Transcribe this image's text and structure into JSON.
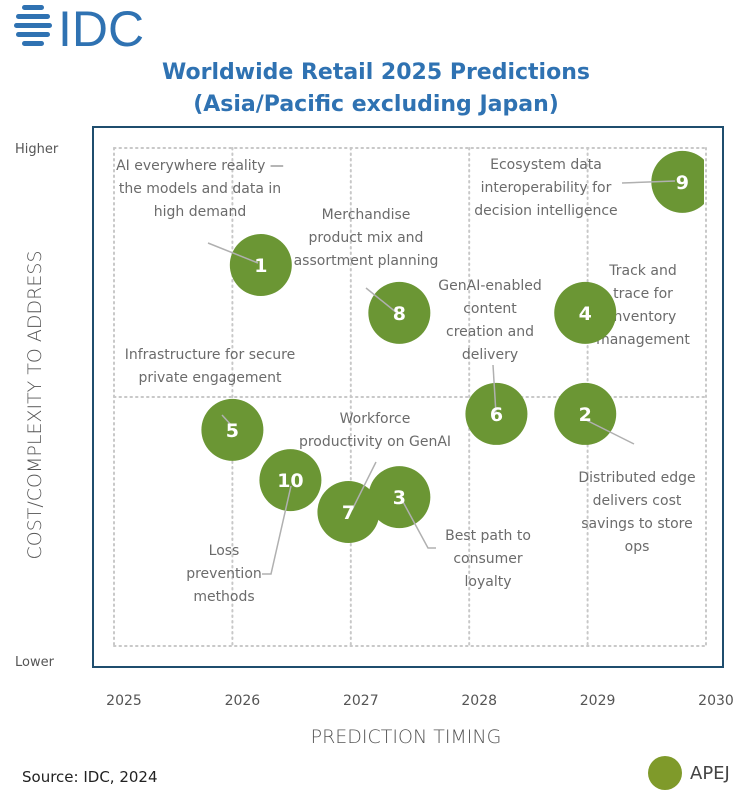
{
  "logo": {
    "text": "IDC",
    "icon": "globe-stripes-icon",
    "color": "#2f72b2"
  },
  "header": {
    "title_line1": "Worldwide Retail 2025 Predictions",
    "title_line2": "(Asia/Pacific excluding Japan)",
    "title_color": "#2f72b2"
  },
  "footer": {
    "source": "Source: IDC, 2024"
  },
  "colors": {
    "bubble": "#6b9634",
    "legend": "#7f9a2a",
    "frame": "#1f4e6e",
    "grid": "#c8c8c8",
    "leader": "#b0b0b0"
  },
  "chart_data": {
    "type": "scatter",
    "title": "Worldwide Retail 2025 Predictions (Asia/Pacific excluding Japan)",
    "xlabel": "PREDICTION TIMING",
    "ylabel": "COST/COMPLEXITY TO ADDRESS",
    "x_ticks": [
      "2025",
      "2026",
      "2027",
      "2028",
      "2029",
      "2030"
    ],
    "xlim": [
      2025,
      2030
    ],
    "y_ticks": {
      "high": "Higher",
      "low": "Lower"
    },
    "ylim": [
      0,
      1
    ],
    "grid": true,
    "legend": {
      "position": "bottom-right",
      "entries": [
        "APEJ"
      ]
    },
    "series": [
      {
        "name": "APEJ",
        "points": [
          {
            "id": "1",
            "x": 2026.24,
            "y": 0.765,
            "label": [
              "AI everywhere reality —",
              "the models and data in",
              "high demand"
            ]
          },
          {
            "id": "2",
            "x": 2028.98,
            "y": 0.466,
            "label": [
              "Distributed edge",
              "delivers cost",
              "savings to store",
              "ops"
            ]
          },
          {
            "id": "3",
            "x": 2027.41,
            "y": 0.299,
            "label": [
              "Best path to",
              "consumer",
              "loyalty"
            ]
          },
          {
            "id": "4",
            "x": 2028.98,
            "y": 0.669,
            "label": [
              "Track and",
              "trace for",
              "inventory",
              "management"
            ]
          },
          {
            "id": "5",
            "x": 2026.0,
            "y": 0.434,
            "label": [
              "Infrastructure for secure",
              "private engagement"
            ]
          },
          {
            "id": "6",
            "x": 2028.23,
            "y": 0.466,
            "label": [
              "GenAI-enabled",
              "content",
              "creation and",
              "delivery"
            ]
          },
          {
            "id": "7",
            "x": 2026.98,
            "y": 0.269,
            "label": [
              "Workforce",
              "productivity on GenAI"
            ]
          },
          {
            "id": "8",
            "x": 2027.41,
            "y": 0.669,
            "label": [
              "Merchandise",
              "product mix and",
              "assortment planning"
            ]
          },
          {
            "id": "9",
            "x": 2029.8,
            "y": 0.932,
            "label": [
              "Ecosystem data",
              "interoperability for",
              "decision intelligence"
            ]
          },
          {
            "id": "10",
            "x": 2026.49,
            "y": 0.333,
            "label": [
              "Loss",
              "prevention",
              "methods"
            ]
          }
        ]
      }
    ]
  }
}
